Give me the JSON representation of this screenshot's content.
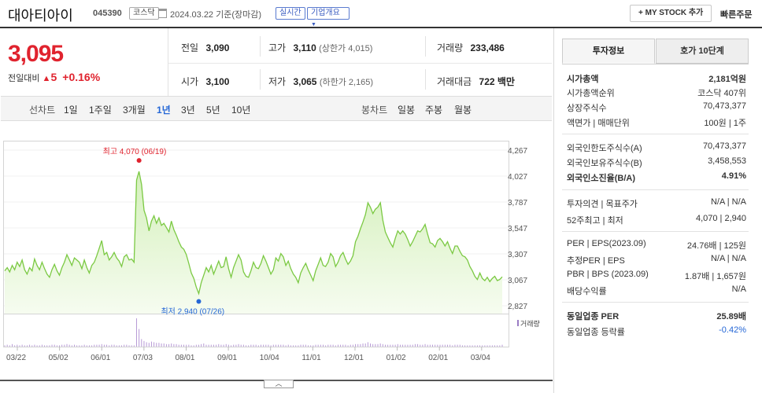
{
  "header": {
    "name": "대아티아이",
    "code": "045390",
    "market": "코스닥",
    "date": "2024.03.22 기준(장마감)",
    "realtime": "실시간",
    "company_info": "기업개요",
    "my_stock": "MY STOCK 추가",
    "quick_order": "빠른주문"
  },
  "quote": {
    "price": "3,095",
    "change_label": "전일대비",
    "change": "5",
    "change_pct": "+0.16%",
    "prev_label": "전일",
    "prev": "3,090",
    "high_label": "고가",
    "high": "3,110",
    "high_sub": "(상한가 4,015)",
    "volume_label": "거래량",
    "volume": "233,486",
    "open_label": "시가",
    "open": "3,100",
    "low_label": "저가",
    "low": "3,065",
    "low_sub": "(하한가 2,165)",
    "amount_label": "거래대금",
    "amount": "722",
    "amount_unit": "백만"
  },
  "chart_nav": {
    "line_label": "선차트",
    "line_periods": [
      "1일",
      "1주일",
      "3개월",
      "1년",
      "3년",
      "5년",
      "10년"
    ],
    "selected": "1년",
    "candle_label": "봉차트",
    "candle_periods": [
      "일봉",
      "주봉",
      "월봉"
    ]
  },
  "chart_data": {
    "type": "area",
    "yticks": [
      "4,267",
      "4,027",
      "3,787",
      "3,547",
      "3,307",
      "3,067",
      "2,827"
    ],
    "ylim": [
      2827,
      4267
    ],
    "xticks": [
      "03/22",
      "05/02",
      "06/01",
      "07/03",
      "08/01",
      "09/01",
      "10/04",
      "11/01",
      "12/01",
      "01/02",
      "02/01",
      "03/04"
    ],
    "high_annotation": "최고 4,070 (06/19)",
    "low_annotation": "최저 2,940 (07/26)",
    "volume_label": "거래량",
    "prices": [
      3150,
      3180,
      3140,
      3200,
      3160,
      3230,
      3190,
      3250,
      3160,
      3120,
      3180,
      3150,
      3260,
      3200,
      3160,
      3230,
      3170,
      3120,
      3090,
      3160,
      3210,
      3150,
      3110,
      3180,
      3230,
      3300,
      3250,
      3200,
      3270,
      3250,
      3230,
      3170,
      3250,
      3180,
      3130,
      3200,
      3230,
      3290,
      3360,
      3430,
      3300,
      3320,
      3250,
      3280,
      3320,
      3270,
      3240,
      3190,
      3280,
      3300,
      3250,
      3260,
      3230,
      3990,
      4070,
      3950,
      3710,
      3640,
      3520,
      3610,
      3660,
      3590,
      3640,
      3570,
      3590,
      3550,
      3510,
      3610,
      3530,
      3480,
      3420,
      3370,
      3350,
      3300,
      3220,
      3130,
      3080,
      3000,
      2940,
      3040,
      3110,
      3180,
      3140,
      3200,
      3120,
      3180,
      3240,
      3180,
      3190,
      3280,
      3170,
      3090,
      3180,
      3240,
      3300,
      3250,
      3140,
      3100,
      3090,
      3150,
      3230,
      3180,
      3170,
      3220,
      3290,
      3240,
      3180,
      3120,
      3160,
      3270,
      3240,
      3310,
      3280,
      3200,
      3240,
      3170,
      3120,
      3090,
      3040,
      3130,
      3180,
      3220,
      3160,
      3110,
      3060,
      3150,
      3210,
      3270,
      3200,
      3190,
      3230,
      3310,
      3280,
      3190,
      3230,
      3290,
      3320,
      3260,
      3210,
      3240,
      3290,
      3420,
      3470,
      3540,
      3600,
      3670,
      3780,
      3740,
      3680,
      3720,
      3740,
      3780,
      3620,
      3510,
      3460,
      3410,
      3370,
      3450,
      3520,
      3490,
      3520,
      3490,
      3440,
      3380,
      3420,
      3470,
      3520,
      3510,
      3540,
      3580,
      3490,
      3410,
      3400,
      3370,
      3430,
      3450,
      3420,
      3380,
      3420,
      3360,
      3310,
      3380,
      3380,
      3330,
      3290,
      3280,
      3250,
      3190,
      3150,
      3100,
      3070,
      3130,
      3080,
      3060,
      3090,
      3050,
      3080,
      3100,
      3060,
      3070,
      3095
    ],
    "volumes": [
      2,
      3,
      2,
      4,
      2,
      3,
      2,
      3,
      2,
      2,
      3,
      2,
      3,
      2,
      2,
      3,
      2,
      2,
      2,
      3,
      3,
      2,
      2,
      3,
      3,
      4,
      3,
      2,
      3,
      2,
      2,
      2,
      3,
      2,
      2,
      2,
      3,
      3,
      3,
      4,
      3,
      3,
      2,
      3,
      3,
      2,
      2,
      2,
      3,
      3,
      2,
      2,
      2,
      45,
      28,
      12,
      9,
      7,
      6,
      8,
      7,
      6,
      6,
      5,
      5,
      4,
      4,
      5,
      4,
      4,
      3,
      3,
      3,
      3,
      3,
      2,
      2,
      3,
      3,
      4,
      5,
      3,
      3,
      3,
      3,
      3,
      4,
      3,
      3,
      4,
      3,
      2,
      3,
      3,
      4,
      3,
      3,
      2,
      2,
      3,
      3,
      3,
      2,
      3,
      3,
      3,
      3,
      2,
      3,
      3,
      3,
      3,
      3,
      2,
      3,
      2,
      2,
      2,
      2,
      3,
      3,
      3,
      2,
      2,
      2,
      3,
      3,
      3,
      3,
      2,
      3,
      3,
      3,
      2,
      3,
      3,
      3,
      3,
      2,
      3,
      3,
      4,
      4,
      4,
      5,
      5,
      7,
      5,
      4,
      4,
      4,
      5,
      4,
      3,
      3,
      3,
      3,
      3,
      4,
      3,
      3,
      3,
      3,
      3,
      3,
      4,
      4,
      3,
      3,
      4,
      3,
      3,
      3,
      3,
      3,
      3,
      3,
      3,
      3,
      3,
      2,
      3,
      3,
      3,
      2,
      2,
      2,
      2,
      2,
      2,
      2,
      2,
      2,
      2,
      2,
      2,
      2,
      2,
      2,
      2,
      3
    ]
  },
  "tabs": {
    "invest": "투자정보",
    "hoga": "호가 10단계"
  },
  "invest": [
    {
      "label": "시가총액",
      "value": "2,181억원",
      "bold": true
    },
    {
      "label": "시가총액순위",
      "value": "코스닥 407위"
    },
    {
      "label": "상장주식수",
      "value": "70,473,377"
    },
    {
      "label": "액면가 | 매매단위",
      "value": "100원 | 1주"
    },
    {
      "label": "외국인한도주식수(A)",
      "value": "70,473,377"
    },
    {
      "label": "외국인보유주식수(B)",
      "value": "3,458,553"
    },
    {
      "label": "외국인소진율(B/A)",
      "value": "4.91%",
      "bold": true
    },
    {
      "label": "투자의견 | 목표주가",
      "value": "N/A | N/A"
    },
    {
      "label": "52주최고 | 최저",
      "value": "4,070 | 2,940"
    },
    {
      "label": "PER | EPS(2023.09)",
      "value": "24.76배 | 125원"
    },
    {
      "label": "추정PER | EPS",
      "value": "N/A | N/A"
    },
    {
      "label": "PBR | BPS (2023.09)",
      "value": "1.87배 | 1,657원"
    },
    {
      "label": "배당수익률",
      "value": "N/A"
    },
    {
      "label": "동일업종 PER",
      "value": "25.89배",
      "bold": true
    },
    {
      "label": "동일업종 등락률",
      "value": "-0.42%",
      "blue": true
    }
  ],
  "colors": {
    "up": "#e0232e",
    "down": "#2567d6",
    "line": "#7bc943",
    "fill": "#e6f6d8"
  }
}
